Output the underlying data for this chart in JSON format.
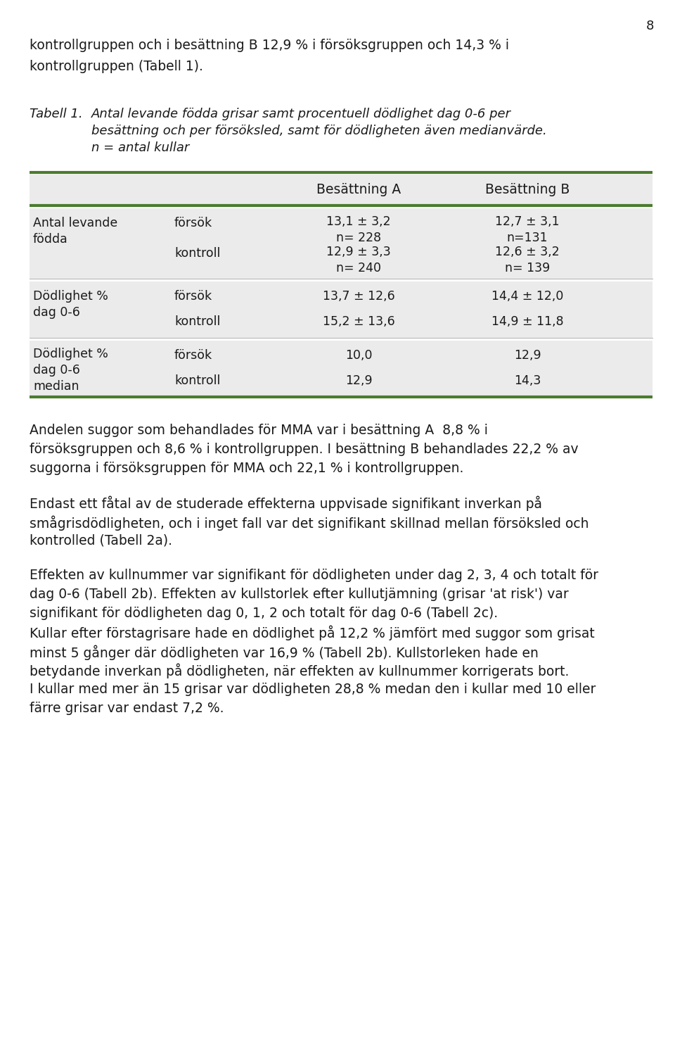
{
  "page_number": "8",
  "top_paragraph_lines": [
    "kontrollgruppen och i besättning B 12,9 % i försöksgruppen och 14,3 % i",
    "kontrollgruppen (Tabell 1)."
  ],
  "table_label": "Tabell 1.",
  "table_caption_lines": [
    "Antal levande födda grisar samt procentuell dödlighet dag 0-6 per",
    "besättning och per försöksled, samt för dödligheten även medianvärde.",
    "n = antal kullar"
  ],
  "col_headers": [
    "Besättning A",
    "Besättning B"
  ],
  "green_color": "#4a7c2f",
  "bg_color": "#ebebeb",
  "text_color": "#1a1a1a",
  "font_size_body": 13.5,
  "font_size_caption": 13.0,
  "font_size_table": 12.5,
  "paragraphs": [
    [
      "Andelen suggor som behandlades för MMA var i besättning A  8,8 % i",
      "försöksgruppen och 8,6 % i kontrollgruppen. I besättning B behandlades 22,2 % av",
      "suggorna i försöksgruppen för MMA och 22,1 % i kontrollgruppen."
    ],
    [
      "Endast ett fåtal av de studerade effekterna uppvisade signifikant inverkan på",
      "smågrisdödligheten, och i inget fall var det signifikant skillnad mellan försöksled och",
      "kontrolled (Tabell 2a)."
    ],
    [
      "Effekten av kullnummer var signifikant för dödligheten under dag 2, 3, 4 och totalt för",
      "dag 0-6 (Tabell 2b). Effekten av kullstorlek efter kullutjämning (grisar 'at risk') var",
      "signifikant för dödligheten dag 0, 1, 2 och totalt för dag 0-6 (Tabell 2c).",
      "Kullar efter förstagrisare hade en dödlighet på 12,2 % jämfört med suggor som grisat",
      "minst 5 gånger där dödligheten var 16,9 % (Tabell 2b). Kullstorleken hade en",
      "betydande inverkan på dödligheten, när effekten av kullnummer korrigerats bort.",
      "I kullar med mer än 15 grisar var dödligheten 28,8 % medan den i kullar med 10 eller",
      "färre grisar var endast 7,2 %."
    ]
  ]
}
